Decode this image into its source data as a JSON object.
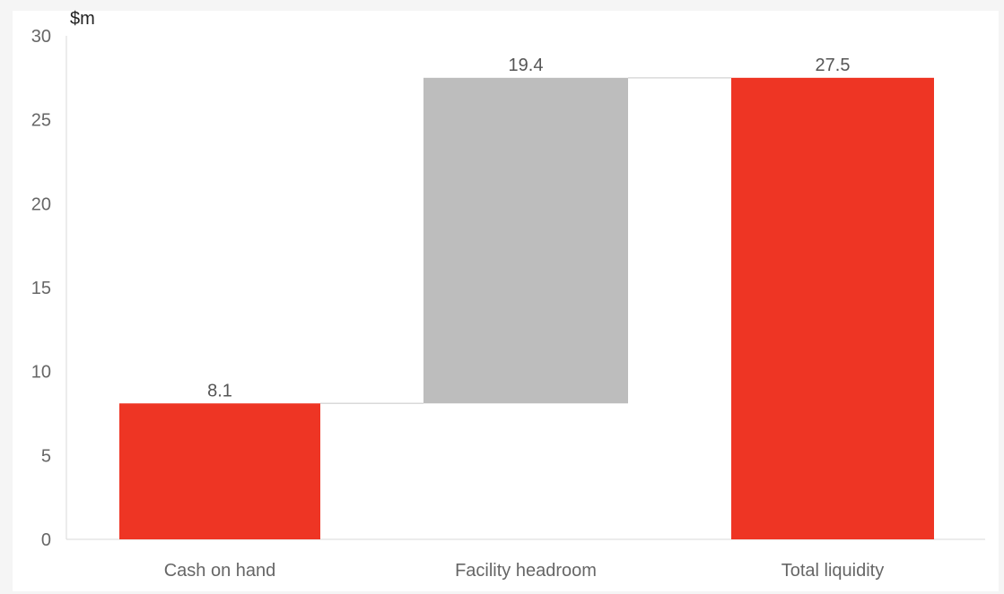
{
  "chart_data": {
    "type": "bar",
    "subtype": "waterfall",
    "unit_label": "$m",
    "categories": [
      "Cash on hand",
      "Facility headroom",
      "Total liquidity"
    ],
    "series": [
      {
        "values": [
          8.1,
          19.4,
          27.5
        ],
        "bases": [
          0,
          8.1,
          0
        ],
        "data_labels": [
          "8.1",
          "19.4",
          "27.5"
        ],
        "colors": [
          "#ee3524",
          "#bdbdbd",
          "#ee3524"
        ]
      }
    ],
    "ylim": [
      0,
      30
    ],
    "yticks": [
      0,
      5,
      10,
      15,
      20,
      25,
      30
    ],
    "grid": false,
    "legend": "none"
  }
}
